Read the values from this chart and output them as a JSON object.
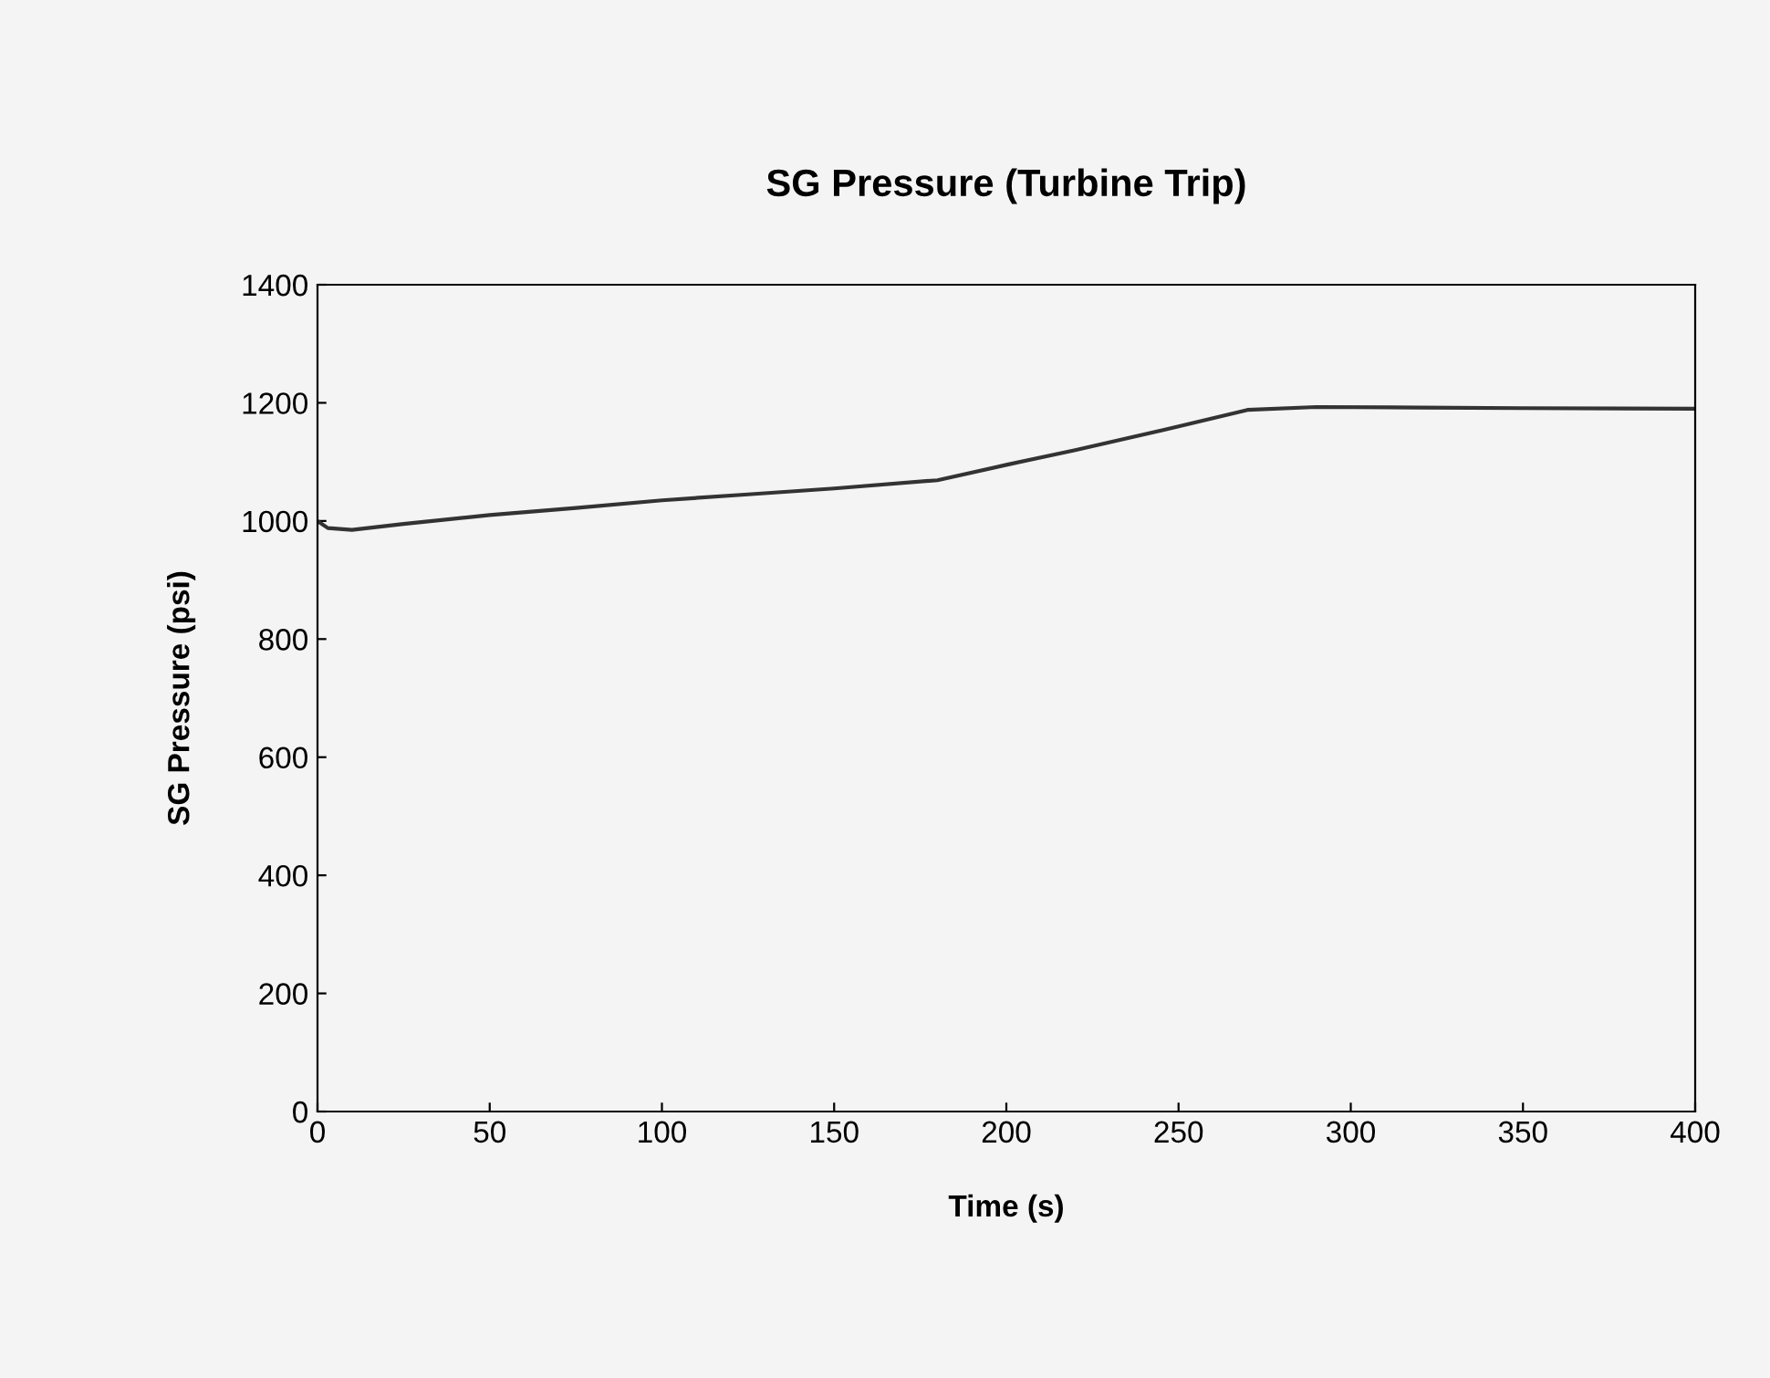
{
  "chart_data": {
    "type": "line",
    "title": "SG Pressure (Turbine Trip)",
    "xlabel": "Time (s)",
    "ylabel": "SG Pressure (psi)",
    "x": [
      0,
      3,
      10,
      25,
      50,
      75,
      100,
      125,
      150,
      180,
      200,
      220,
      250,
      270,
      290,
      320,
      350,
      400
    ],
    "series": [
      {
        "color": "#333333",
        "values": [
          1000,
          988,
          985,
          995,
          1010,
          1022,
          1035,
          1045,
          1055,
          1069,
          1095,
          1120,
          1160,
          1188,
          1193,
          1192,
          1191,
          1190
        ]
      }
    ],
    "xlim": [
      0,
      400
    ],
    "xticks": [
      0,
      50,
      100,
      150,
      200,
      250,
      300,
      350,
      400
    ],
    "ylim": [
      0,
      1400
    ],
    "yticks": [
      0,
      200,
      400,
      600,
      800,
      1000,
      1200,
      1400
    ],
    "grid": false,
    "legend": false
  }
}
